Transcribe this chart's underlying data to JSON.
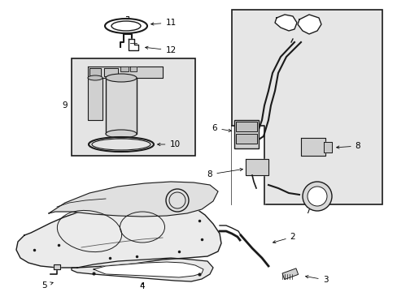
{
  "bg_color": "#ffffff",
  "line_color": "#1a1a1a",
  "fill_color": "#ebebeb",
  "box_fill": "#e8e8e8",
  "fig_width": 4.89,
  "fig_height": 3.6,
  "dpi": 100,
  "label_fs": 7.5,
  "arrow_lw": 0.55
}
